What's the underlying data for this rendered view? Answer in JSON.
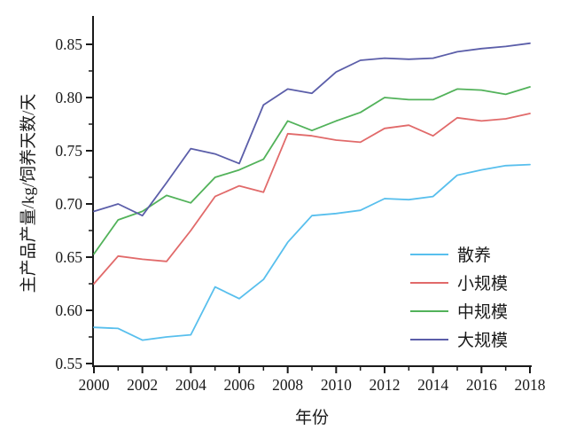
{
  "chart_data": {
    "type": "line",
    "title": "",
    "xlabel": "年份",
    "ylabel": "主产品产量/kg/饲养天数/天",
    "x": [
      2000,
      2001,
      2002,
      2003,
      2004,
      2005,
      2006,
      2007,
      2008,
      2009,
      2010,
      2011,
      2012,
      2013,
      2014,
      2015,
      2016,
      2017,
      2018
    ],
    "x_major_tick_labels": [
      "2000",
      "2002",
      "2004",
      "2006",
      "2008",
      "2010",
      "2012",
      "2014",
      "2016",
      "2018"
    ],
    "xlim": [
      2000,
      2018
    ],
    "ylim": [
      0.55,
      0.875
    ],
    "yticks": [
      0.55,
      0.6,
      0.65,
      0.7,
      0.75,
      0.8,
      0.85
    ],
    "y_minor_step": 0.025,
    "grid": false,
    "legend_position": "inside-lower-right",
    "axis_color": "#1a1a1a",
    "series": [
      {
        "name": "散养",
        "color": "#58BFED",
        "values": [
          0.584,
          0.583,
          0.572,
          0.575,
          0.577,
          0.622,
          0.611,
          0.629,
          0.664,
          0.689,
          0.691,
          0.694,
          0.705,
          0.704,
          0.707,
          0.727,
          0.732,
          0.736,
          0.737
        ]
      },
      {
        "name": "小规模",
        "color": "#E16A6A",
        "values": [
          0.625,
          0.651,
          0.648,
          0.646,
          0.675,
          0.707,
          0.717,
          0.711,
          0.766,
          0.764,
          0.76,
          0.758,
          0.771,
          0.774,
          0.764,
          0.781,
          0.778,
          0.78,
          0.785
        ]
      },
      {
        "name": "中规模",
        "color": "#52B25A",
        "values": [
          0.653,
          0.685,
          0.693,
          0.708,
          0.701,
          0.725,
          0.732,
          0.742,
          0.778,
          0.769,
          0.778,
          0.786,
          0.8,
          0.798,
          0.798,
          0.808,
          0.807,
          0.803,
          0.81
        ]
      },
      {
        "name": "大规模",
        "color": "#5B5EA9",
        "values": [
          0.693,
          0.7,
          0.689,
          0.72,
          0.752,
          0.747,
          0.738,
          0.793,
          0.808,
          0.804,
          0.824,
          0.835,
          0.837,
          0.836,
          0.837,
          0.843,
          0.846,
          0.848,
          0.851
        ]
      }
    ]
  }
}
